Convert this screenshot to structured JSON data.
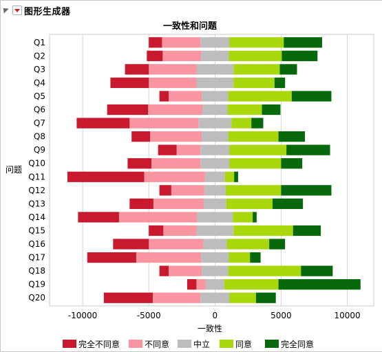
{
  "panel": {
    "title": "图形生成器",
    "menu_icon": "red-triangle-menu-icon",
    "collapse_icon": "disclosure-triangle-icon"
  },
  "chart_data": {
    "type": "bar",
    "orientation": "horizontal",
    "stacking": "diverging",
    "title": "一致性和问题",
    "xlabel": "一致性",
    "ylabel": "问题",
    "xlim": [
      -12500,
      12000
    ],
    "xticks": [
      -10000,
      -5000,
      0,
      5000,
      10000
    ],
    "xtick_labels": [
      "-10000",
      "-5000",
      "0",
      "5000",
      "10000"
    ],
    "grid": "vertical",
    "legend_position": "bottom",
    "categories": [
      "Q1",
      "Q2",
      "Q3",
      "Q4",
      "Q5",
      "Q6",
      "Q7",
      "Q8",
      "Q9",
      "Q10",
      "Q11",
      "Q12",
      "Q13",
      "Q14",
      "Q15",
      "Q16",
      "Q17",
      "Q18",
      "Q19",
      "Q20"
    ],
    "series": [
      {
        "name": "完全不同意",
        "color": "#c8192e",
        "values": [
          1000,
          1200,
          1800,
          2900,
          700,
          3100,
          4000,
          1400,
          1400,
          1800,
          5800,
          900,
          1800,
          3100,
          1100,
          2700,
          3700,
          700,
          700,
          3700
        ]
      },
      {
        "name": "不同意",
        "color": "#f895a0",
        "values": [
          2900,
          2900,
          3600,
          3600,
          2500,
          4100,
          5200,
          3900,
          1800,
          3700,
          4600,
          2500,
          3800,
          5900,
          2500,
          4100,
          4900,
          2500,
          700,
          3600
        ]
      },
      {
        "name": "中立",
        "color": "#bdbdbd",
        "values": [
          2200,
          2100,
          2800,
          2800,
          2000,
          1900,
          2500,
          2000,
          2200,
          2200,
          1500,
          1600,
          1700,
          2700,
          2800,
          1800,
          2100,
          2000,
          1400,
          2200
        ]
      },
      {
        "name": "同意",
        "color": "#a8d80c",
        "values": [
          4100,
          4000,
          3500,
          3100,
          4800,
          2600,
          1500,
          3800,
          4300,
          3900,
          700,
          4200,
          3500,
          1500,
          4500,
          3200,
          1600,
          5500,
          4100,
          2000
        ]
      },
      {
        "name": "完全同意",
        "color": "#08690c",
        "values": [
          2900,
          2700,
          1300,
          800,
          3000,
          1400,
          900,
          2000,
          3300,
          1600,
          300,
          3800,
          2300,
          300,
          2100,
          1200,
          800,
          2400,
          6200,
          1500
        ]
      }
    ]
  }
}
